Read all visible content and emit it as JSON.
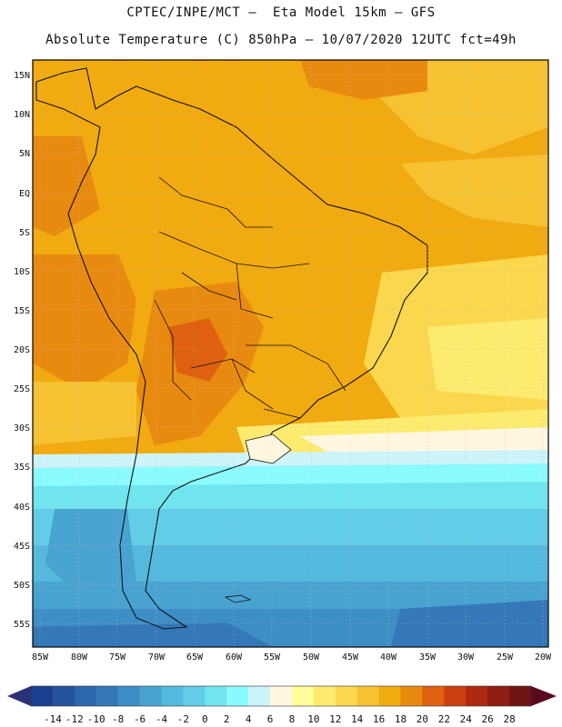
{
  "header": {
    "line1": "CPTEC/INPE/MCT –  Eta Model 15km – GFS",
    "line2": "Absolute Temperature (C) 850hPa – 10/07/2020 12UTC fct=49h"
  },
  "axes": {
    "lat_labels": [
      "15N",
      "10N",
      "5N",
      "EQ",
      "5S",
      "10S",
      "15S",
      "20S",
      "25S",
      "30S",
      "35S",
      "40S",
      "45S",
      "50S",
      "55S"
    ],
    "lon_labels": [
      "85W",
      "80W",
      "75W",
      "70W",
      "65W",
      "60W",
      "55W",
      "50W",
      "45W",
      "40W",
      "35W",
      "30W",
      "25W",
      "20W"
    ]
  },
  "colorbar": {
    "labels": [
      "-14",
      "-12",
      "-10",
      "-8",
      "-6",
      "-4",
      "-2",
      "0",
      "2",
      "4",
      "6",
      "8",
      "10",
      "12",
      "14",
      "16",
      "18",
      "20",
      "22",
      "24",
      "26",
      "28"
    ],
    "colors": [
      "#1c3f91",
      "#24549f",
      "#2c66ad",
      "#3478b8",
      "#3e8ec6",
      "#49a3d1",
      "#55b8dd",
      "#62cde6",
      "#70e5ee",
      "#8afbff",
      "#cdf3fb",
      "#fff7df",
      "#fffd9a",
      "#fdeb6f",
      "#fbd74e",
      "#f6c232",
      "#f1aa10",
      "#e98a10",
      "#de6010",
      "#ca4010",
      "#ad2a0e",
      "#8e1e12",
      "#6e1414"
    ]
  }
}
